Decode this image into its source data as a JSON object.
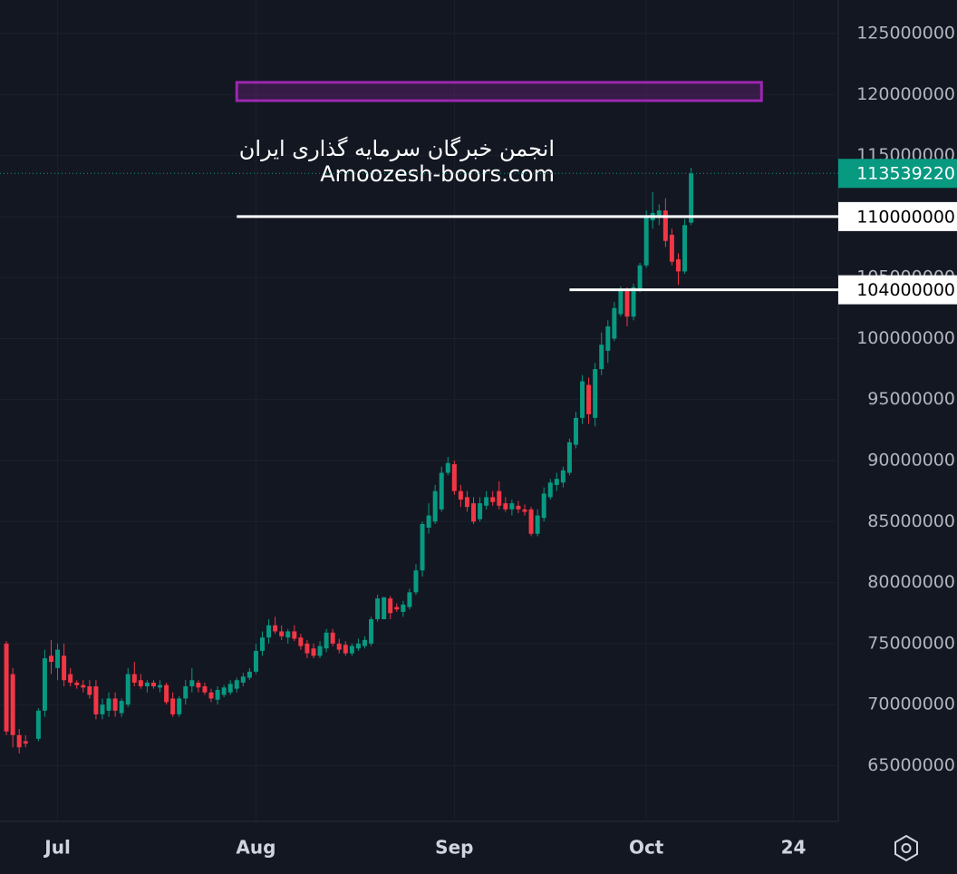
{
  "chart_data": {
    "type": "candlestick",
    "x": [
      "Jun 23",
      "Jun 24",
      "Jun 25",
      "Jun 26",
      "Jun 28",
      "Jun 29",
      "Jun 30",
      "Jul 1",
      "Jul 2",
      "Jul 3",
      "Jul 4",
      "Jul 5",
      "Jul 6",
      "Jul 7",
      "Jul 8",
      "Jul 9",
      "Jul 10",
      "Jul 11",
      "Jul 12",
      "Jul 13",
      "Jul 14",
      "Jul 15",
      "Jul 16",
      "Jul 17",
      "Jul 18",
      "Jul 19",
      "Jul 20",
      "Jul 21",
      "Jul 22",
      "Jul 23",
      "Jul 24",
      "Jul 25",
      "Jul 26",
      "Jul 27",
      "Jul 28",
      "Jul 29",
      "Jul 30",
      "Jul 31",
      "Aug 1",
      "Aug 2",
      "Aug 3",
      "Aug 4",
      "Aug 5",
      "Aug 6",
      "Aug 7",
      "Aug 8",
      "Aug 9",
      "Aug 10",
      "Aug 11",
      "Aug 12",
      "Aug 13",
      "Aug 14",
      "Aug 15",
      "Aug 16",
      "Aug 17",
      "Aug 18",
      "Aug 19",
      "Aug 20",
      "Aug 21",
      "Aug 22",
      "Aug 23",
      "Aug 24",
      "Aug 25",
      "Aug 26",
      "Aug 27",
      "Aug 28",
      "Aug 29",
      "Aug 30",
      "Aug 31",
      "Sep 1",
      "Sep 2",
      "Sep 3",
      "Sep 4",
      "Sep 5",
      "Sep 6",
      "Sep 7",
      "Sep 8",
      "Sep 9",
      "Sep 10",
      "Sep 11",
      "Sep 12",
      "Sep 13",
      "Sep 14",
      "Sep 15",
      "Sep 16",
      "Sep 17",
      "Sep 18",
      "Sep 19",
      "Sep 20",
      "Sep 21",
      "Sep 22",
      "Sep 23",
      "Sep 24",
      "Sep 25",
      "Sep 26",
      "Sep 27",
      "Sep 28",
      "Sep 29",
      "Sep 30",
      "Oct 1",
      "Oct 2",
      "Oct 3",
      "Oct 4",
      "Oct 5",
      "Oct 6",
      "Oct 7",
      "Oct 8"
    ],
    "open": [
      75000000,
      72500000,
      67500000,
      67000000,
      67200000,
      69500000,
      74000000,
      73000000,
      74000000,
      72500000,
      71800000,
      71600000,
      71500000,
      71500000,
      69200000,
      69500000,
      70500000,
      69300000,
      70000000,
      72500000,
      72000000,
      71500000,
      71800000,
      71400000,
      71600000,
      70500000,
      69200000,
      70500000,
      71500000,
      71800000,
      71500000,
      71000000,
      70400000,
      70800000,
      71000000,
      71300000,
      71800000,
      72200000,
      72700000,
      74400000,
      75500000,
      76500000,
      76000000,
      75500000,
      76000000,
      75500000,
      75000000,
      74600000,
      74000000,
      74600000,
      75900000,
      75000000,
      74900000,
      74200000,
      74600000,
      74800000,
      75000000,
      77000000,
      77000000,
      78700000,
      78000000,
      77600000,
      78000000,
      79200000,
      81000000,
      84500000,
      85000000,
      86000000,
      89000000,
      89700000,
      87500000,
      87000000,
      86500000,
      85200000,
      86300000,
      87000000,
      87500000,
      86500000,
      86000000,
      86300000,
      86000000,
      86000000,
      84000000,
      85300000,
      87000000,
      88000000,
      88200000,
      89000000,
      91300000,
      93500000,
      96200000,
      93500000,
      97500000,
      99000000,
      100000000,
      102000000,
      104000000,
      101800000,
      104000000,
      106000000,
      109700000,
      110000000,
      110500000,
      108500000,
      106500000,
      105500000,
      109500000
    ],
    "high": [
      75200000,
      73000000,
      68000000,
      67500000,
      69700000,
      74500000,
      75300000,
      75000000,
      75000000,
      73000000,
      72000000,
      72000000,
      72000000,
      72000000,
      70500000,
      71000000,
      71000000,
      70500000,
      73000000,
      73500000,
      72500000,
      72000000,
      72000000,
      72000000,
      71800000,
      71000000,
      70700000,
      72000000,
      73000000,
      72000000,
      71800000,
      71300000,
      71500000,
      71600000,
      72000000,
      72200000,
      72600000,
      73000000,
      75000000,
      76000000,
      77000000,
      77200000,
      76500000,
      76200000,
      76500000,
      75800000,
      75300000,
      75000000,
      75200000,
      76200000,
      76200000,
      75400000,
      75200000,
      75000000,
      75400000,
      75600000,
      77200000,
      79000000,
      78800000,
      78900000,
      78300000,
      78500000,
      79500000,
      81500000,
      85000000,
      86500000,
      88000000,
      89500000,
      90300000,
      90000000,
      88000000,
      87500000,
      87000000,
      87000000,
      87500000,
      87500000,
      88300000,
      87000000,
      86800000,
      86700000,
      86400000,
      86200000,
      86000000,
      87800000,
      88500000,
      89000000,
      89500000,
      91800000,
      94000000,
      97000000,
      96800000,
      98000000,
      100500000,
      101500000,
      103000000,
      104300000,
      104200000,
      104500000,
      106200000,
      110500000,
      112000000,
      111000000,
      111500000,
      109000000,
      107000000,
      109800000,
      114000000
    ],
    "low": [
      67500000,
      66500000,
      66000000,
      66500000,
      67000000,
      69000000,
      72500000,
      72000000,
      71500000,
      71500000,
      71300000,
      71000000,
      70500000,
      68800000,
      68800000,
      69000000,
      69000000,
      69000000,
      69800000,
      71500000,
      71300000,
      71000000,
      71300000,
      71000000,
      70000000,
      69000000,
      69000000,
      70000000,
      71000000,
      71000000,
      70800000,
      70200000,
      70000000,
      70600000,
      70800000,
      71000000,
      71500000,
      72000000,
      72500000,
      74000000,
      75000000,
      75800000,
      75300000,
      75000000,
      75200000,
      74500000,
      73800000,
      73800000,
      73800000,
      74300000,
      74800000,
      74200000,
      74000000,
      74000000,
      74400000,
      74600000,
      74800000,
      76800000,
      77000000,
      77000000,
      77600000,
      77200000,
      77800000,
      79000000,
      80500000,
      84000000,
      84800000,
      85800000,
      88800000,
      87200000,
      86200000,
      85800000,
      84800000,
      85000000,
      86000000,
      86300000,
      86000000,
      85800000,
      85500000,
      85700000,
      85500000,
      83800000,
      83800000,
      85000000,
      86800000,
      87500000,
      87800000,
      88800000,
      91000000,
      93000000,
      93000000,
      92800000,
      97000000,
      98000000,
      99800000,
      101800000,
      101000000,
      101500000,
      103800000,
      105800000,
      109000000,
      109300000,
      107500000,
      106000000,
      104400000,
      105300000,
      109300000
    ],
    "close": [
      67800000,
      67500000,
      66500000,
      66800000,
      69500000,
      73800000,
      73500000,
      74500000,
      72000000,
      71800000,
      71600000,
      71400000,
      70800000,
      69200000,
      70000000,
      70500000,
      69500000,
      70300000,
      72500000,
      71800000,
      71500000,
      71800000,
      71500000,
      71600000,
      70200000,
      69200000,
      70500000,
      71500000,
      72000000,
      71400000,
      71000000,
      70500000,
      71200000,
      71400000,
      71700000,
      72000000,
      72300000,
      72700000,
      74400000,
      75500000,
      76500000,
      76000000,
      75600000,
      76000000,
      75400000,
      74800000,
      74200000,
      74000000,
      74800000,
      75900000,
      75000000,
      74500000,
      74200000,
      74800000,
      75000000,
      75300000,
      77000000,
      78700000,
      78800000,
      77500000,
      77800000,
      78200000,
      79200000,
      81000000,
      84800000,
      85500000,
      87500000,
      89000000,
      89800000,
      87500000,
      86800000,
      86200000,
      85000000,
      86500000,
      87000000,
      86600000,
      86300000,
      86000000,
      86500000,
      86000000,
      85800000,
      84000000,
      85500000,
      87300000,
      88200000,
      88500000,
      89200000,
      91500000,
      93500000,
      96500000,
      93800000,
      97500000,
      99500000,
      101000000,
      102500000,
      104000000,
      101800000,
      104200000,
      106000000,
      110000000,
      110300000,
      110500000,
      108000000,
      106300000,
      105500000,
      109300000,
      113539220
    ],
    "up_color": "#089981",
    "down_color": "#f23645",
    "xlim": [
      "Jun 22",
      "Oct 31"
    ],
    "xticks": [
      {
        "value": "Jul 1",
        "label": "Jul"
      },
      {
        "value": "Aug 1",
        "label": "Aug"
      },
      {
        "value": "Sep 1",
        "label": "Sep"
      },
      {
        "value": "Oct 1",
        "label": "Oct"
      },
      {
        "value": "Oct 24",
        "label": "24"
      }
    ],
    "ylim": [
      60500000,
      127750000
    ],
    "yticks": [
      65000000,
      70000000,
      75000000,
      80000000,
      85000000,
      90000000,
      95000000,
      100000000,
      105000000,
      110000000,
      115000000,
      120000000,
      125000000
    ],
    "grid": true,
    "lines": [
      {
        "value": 110000000,
        "start": "Jul 29",
        "color": "#ffffff"
      },
      {
        "value": 104000000,
        "start": "Sep 19",
        "color": "#ffffff"
      }
    ],
    "zones": [
      {
        "top": 121000000,
        "bottom": 119500000,
        "start": "Jul 29",
        "end": "Oct 19",
        "color": "#9c27b0"
      }
    ],
    "watermark": [
      "انجمن خبرگان سرمایه گذاری ایران",
      "Amoozesh-boors.com"
    ]
  }
}
